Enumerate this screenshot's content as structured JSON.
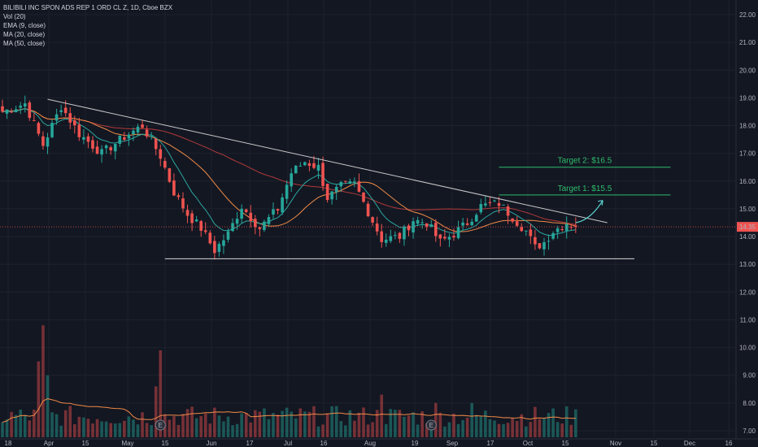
{
  "legend": {
    "title": "BILIBILI INC SPON ADS REP 1 ORD CL Z, 1D, Cboe BZX",
    "vol": "Vol (20)",
    "ema": "EMA (9, close)",
    "ma20": "MA (20, close)",
    "ma50": "MA (50, close)"
  },
  "colors": {
    "background": "#131722",
    "up": "#26a69a",
    "down": "#ef5350",
    "ema": "#2aa7a0",
    "ma20": "#f28b47",
    "ma50": "#b13a3a",
    "trendline": "#c8c8c8",
    "target": "#2ebd6c",
    "price_badge": "#ef5350"
  },
  "chart_data": {
    "type": "candlestick",
    "y_ticks": [
      "22.00",
      "21.00",
      "20.00",
      "19.00",
      "18.00",
      "17.00",
      "16.00",
      "15.00",
      "14.00",
      "13.00",
      "12.00",
      "11.00",
      "10.00",
      "9.00",
      "8.00",
      "7.00"
    ],
    "ylim": [
      7.0,
      22.0
    ],
    "x_ticks": [
      "18",
      "Apr",
      "15",
      "May",
      "15",
      "Jun",
      "17",
      "Jul",
      "16",
      "Aug",
      "19",
      "Sep",
      "17",
      "Oct",
      "15",
      "Nov",
      "15",
      "Dec",
      "16"
    ],
    "last_price": "14.35",
    "anchors": [
      {
        "t": 0,
        "v": 18.5
      },
      {
        "t": 5,
        "v": 18.8
      },
      {
        "t": 9,
        "v": 17.3
      },
      {
        "t": 13,
        "v": 18.7
      },
      {
        "t": 17,
        "v": 17.7
      },
      {
        "t": 22,
        "v": 17.0
      },
      {
        "t": 27,
        "v": 17.6
      },
      {
        "t": 31,
        "v": 18.0
      },
      {
        "t": 35,
        "v": 16.9
      },
      {
        "t": 38,
        "v": 15.6
      },
      {
        "t": 41,
        "v": 14.8
      },
      {
        "t": 44,
        "v": 14.3
      },
      {
        "t": 47,
        "v": 13.5
      },
      {
        "t": 50,
        "v": 14.1
      },
      {
        "t": 53,
        "v": 15.1
      },
      {
        "t": 57,
        "v": 14.3
      },
      {
        "t": 61,
        "v": 15.0
      },
      {
        "t": 64,
        "v": 16.3
      },
      {
        "t": 67,
        "v": 16.7
      },
      {
        "t": 70,
        "v": 16.5
      },
      {
        "t": 72,
        "v": 15.4
      },
      {
        "t": 75,
        "v": 15.8
      },
      {
        "t": 78,
        "v": 15.9
      },
      {
        "t": 81,
        "v": 14.9
      },
      {
        "t": 84,
        "v": 13.9
      },
      {
        "t": 88,
        "v": 14.0
      },
      {
        "t": 91,
        "v": 14.6
      },
      {
        "t": 94,
        "v": 14.5
      },
      {
        "t": 97,
        "v": 13.8
      },
      {
        "t": 100,
        "v": 14.1
      },
      {
        "t": 103,
        "v": 14.5
      },
      {
        "t": 106,
        "v": 15.1
      },
      {
        "t": 110,
        "v": 15.2
      },
      {
        "t": 113,
        "v": 14.7
      },
      {
        "t": 116,
        "v": 14.2
      },
      {
        "t": 118,
        "v": 13.6
      },
      {
        "t": 120,
        "v": 13.8
      },
      {
        "t": 122,
        "v": 14.2
      },
      {
        "t": 125,
        "v": 14.5
      },
      {
        "t": 127,
        "v": 14.35
      }
    ],
    "volume_spikes": [
      {
        "t": 8,
        "v": 9.5
      },
      {
        "t": 9,
        "v": 10.8
      },
      {
        "t": 10,
        "v": 9.0
      },
      {
        "t": 35,
        "v": 9.9
      },
      {
        "t": 34,
        "v": 8.6
      },
      {
        "t": 84,
        "v": 8.3
      },
      {
        "t": 96,
        "v": 8.0
      },
      {
        "t": 104,
        "v": 8.0
      }
    ],
    "support": {
      "t0": 36,
      "t1": 140,
      "v": 13.2
    },
    "trendline": {
      "t0": 10,
      "v0": 18.95,
      "t1": 134,
      "v1": 14.5
    },
    "targets": [
      {
        "label": "Target 1: $15.5",
        "v": 15.5,
        "t0": 110,
        "t1": 148
      },
      {
        "label": "Target 2: $16.5",
        "v": 16.5,
        "t0": 110,
        "t1": 148
      }
    ],
    "arrow": {
      "t0": 127,
      "v0": 14.5,
      "t1": 133,
      "v1": 15.3
    },
    "earnings_markers": [
      {
        "t": 35,
        "label": "E"
      },
      {
        "t": 95,
        "label": "E"
      }
    ]
  }
}
